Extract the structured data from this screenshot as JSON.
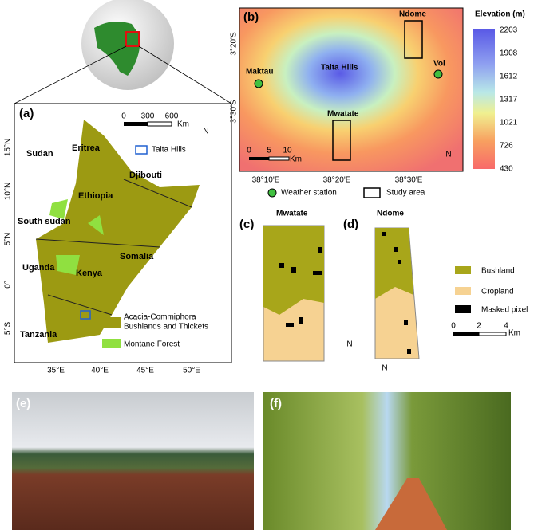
{
  "panel_a": {
    "label": "(a)",
    "scale": [
      0,
      300,
      600,
      "Km"
    ],
    "north": "N",
    "countries": [
      "Sudan",
      "Eritrea",
      "Djibouti",
      "Ethiopia",
      "South sudan",
      "Somalia",
      "Uganda",
      "Kenya",
      "Tanzania"
    ],
    "legend": [
      "Taita Hills",
      "Acacia-Commiphora",
      "Bushlands and Thickets",
      "Montane Forest"
    ],
    "lat_labels": [
      "15°N",
      "10°N",
      "5°N",
      "0°",
      "5°S"
    ],
    "lon_labels": [
      "35°E",
      "40°E",
      "45°E",
      "50°E"
    ]
  },
  "panel_b": {
    "label": "(b)",
    "places": [
      "Ndome",
      "Maktau",
      "Taita Hills",
      "Voi",
      "Mwatate"
    ],
    "lat_labels": [
      "3°20'S",
      "3°30'S"
    ],
    "lon_labels": [
      "38°10'E",
      "38°20'E",
      "38°30'E"
    ],
    "scale": [
      0,
      5,
      10,
      "Km"
    ],
    "north": "N",
    "elevation_title": "Elevation (m)",
    "elevation_ticks": [
      2203,
      1908,
      1612,
      1317,
      1021,
      726,
      430
    ],
    "legend": [
      "Weather station",
      "Study area"
    ]
  },
  "panel_c": {
    "label": "(c)",
    "title": "Mwatate",
    "north": "N"
  },
  "panel_d": {
    "label": "(d)",
    "title": "Ndome",
    "north": "N"
  },
  "classes_legend": [
    "Bushland",
    "Cropland",
    "Masked pixel"
  ],
  "cd_scale": [
    0,
    2,
    4,
    "Km"
  ],
  "panel_e": {
    "label": "(e)"
  },
  "panel_f": {
    "label": "(f)"
  }
}
